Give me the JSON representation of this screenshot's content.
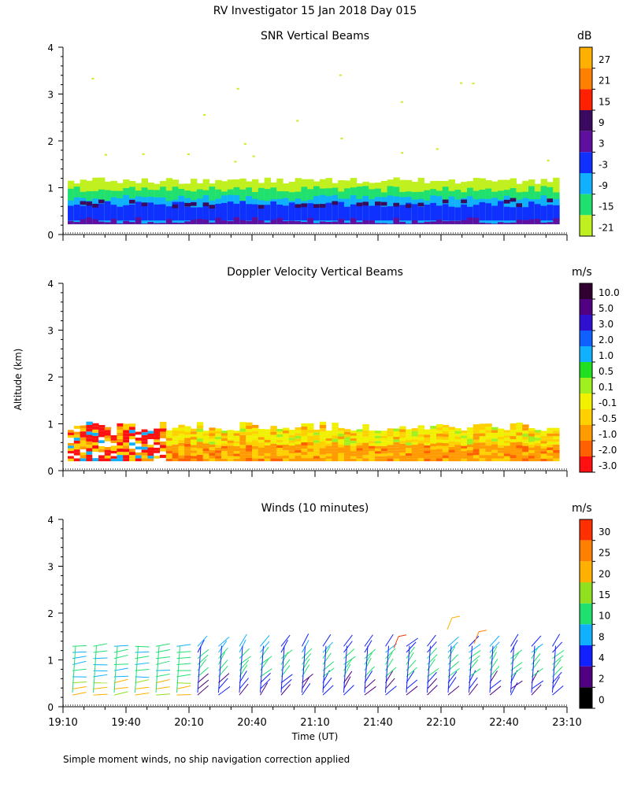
{
  "main_title": "RV Investigator  15 Jan 2018 Day 015",
  "ylabel": "Altitude (km)",
  "xlabel": "Time (UT)",
  "footnote": "Simple moment winds, no ship navigation correction applied",
  "x_ticks": [
    "19:10",
    "19:40",
    "20:10",
    "20:40",
    "21:10",
    "21:40",
    "22:10",
    "22:40",
    "23:10"
  ],
  "y_ticks": [
    "0",
    "1",
    "2",
    "3",
    "4"
  ],
  "panels": [
    {
      "title": "SNR Vertical Beams",
      "unit": "dB",
      "colorbar_labels": [
        "27",
        "21",
        "15",
        "9",
        "3",
        "-3",
        "-9",
        "-15",
        "-21"
      ],
      "colorbar_colors": [
        "#ffb000",
        "#ff7f00",
        "#ff2000",
        "#3a0a60",
        "#6010a0",
        "#1030ff",
        "#10b0ff",
        "#20e070",
        "#c0f020"
      ]
    },
    {
      "title": "Doppler Velocity Vertical Beams",
      "unit": "m/s",
      "colorbar_labels": [
        "10.0",
        "5.0",
        "3.0",
        "2.0",
        "1.0",
        "0.5",
        "0.1",
        "-0.1",
        "-0.5",
        "-1.0",
        "-2.0",
        "-3.0"
      ],
      "colorbar_colors": [
        "#300030",
        "#500080",
        "#3010d0",
        "#1060ff",
        "#10b0ff",
        "#20e020",
        "#a0f020",
        "#f0f000",
        "#ffd000",
        "#ff9a00",
        "#ff6000",
        "#ff1010"
      ]
    },
    {
      "title": "Winds (10 minutes)",
      "unit": "m/s",
      "colorbar_labels": [
        "30",
        "25",
        "20",
        "15",
        "10",
        "8",
        "4",
        "2",
        "0"
      ],
      "colorbar_colors": [
        "#ff3000",
        "#ff8000",
        "#ffb000",
        "#90e020",
        "#20e070",
        "#10b0ff",
        "#1020ff",
        "#500080",
        "#000000"
      ]
    }
  ],
  "colors": {
    "snr_green": "#c0f020",
    "snr_lime": "#20e070",
    "snr_cyan": "#10b0ff",
    "snr_blue": "#1030ff",
    "snr_purple": "#6010a0",
    "vel_orange": "#ff9a00",
    "vel_yellow": "#f0f000"
  }
}
